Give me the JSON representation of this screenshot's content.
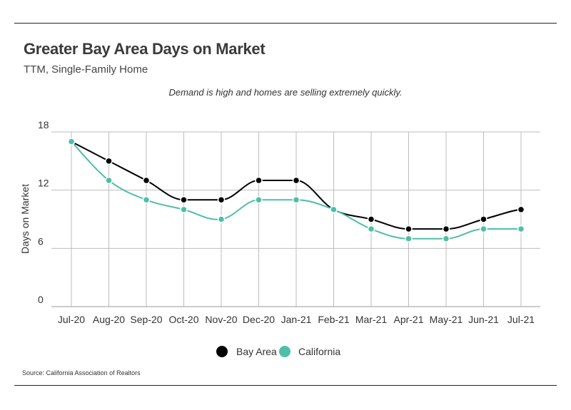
{
  "header": {
    "title": "Greater Bay Area Days on Market",
    "subtitle": "TTM, Single-Family Home"
  },
  "annotation": "Demand is high and homes are selling extremely quickly.",
  "source": "Source:  California Association of Realtors",
  "colors": {
    "bay_area": "#000000",
    "california": "#4dbfa8",
    "grid": "#bdbdbd"
  },
  "chart_data": {
    "type": "line",
    "categories": [
      "Jul-20",
      "Aug-20",
      "Sep-20",
      "Oct-20",
      "Nov-20",
      "Dec-20",
      "Jan-21",
      "Feb-21",
      "Mar-21",
      "Apr-21",
      "May-21",
      "Jun-21",
      "Jul-21"
    ],
    "series": [
      {
        "name": "Bay Area",
        "values": [
          17,
          15,
          13,
          11,
          11,
          13,
          13,
          10,
          9,
          8,
          8,
          9,
          10
        ]
      },
      {
        "name": "California",
        "values": [
          17,
          13,
          11,
          10,
          9,
          11,
          11,
          10,
          8,
          7,
          7,
          8,
          8
        ]
      }
    ],
    "ylabel": "Days on Market",
    "ylim": [
      0,
      18
    ],
    "yticks": [
      0,
      6,
      12,
      18
    ],
    "grid": true,
    "legend": "bottom-center",
    "smooth": true
  }
}
